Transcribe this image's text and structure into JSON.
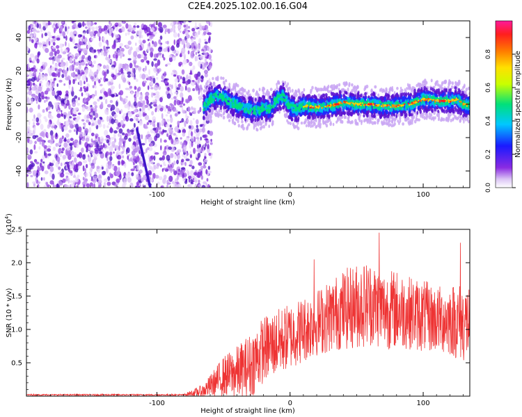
{
  "title": "C2E4.2025.102.00.16.G04",
  "colors": {
    "snr_line": "#ee3333",
    "ridge_core": "#ff2020",
    "noise_light": "#d9b8f5",
    "noise_dark": "#7a1cd8",
    "grid": "#000000"
  },
  "chart_data": [
    {
      "type": "heatmap",
      "title": "C2E4.2025.102.00.16.G04",
      "xlabel": "Height of straight line (km)",
      "ylabel": "Frequency (Hz)",
      "xlim": [
        -198,
        135
      ],
      "ylim": [
        -50,
        50
      ],
      "x_ticks": [
        -100,
        0,
        100
      ],
      "y_ticks": [
        -40,
        -20,
        0,
        20,
        40
      ],
      "colorbar": {
        "label": "Normalized spectral amplitude",
        "range": [
          0.0,
          1.0
        ],
        "ticks": [
          "0.0",
          "0.2",
          "0.4",
          "0.6",
          "0.8"
        ]
      },
      "noise_region_x": [
        -198,
        -65
      ],
      "ridge": {
        "x": [
          -65,
          -60,
          -55,
          -50,
          -45,
          -40,
          -35,
          -30,
          -25,
          -20,
          -15,
          -10,
          -5,
          0,
          5,
          10,
          20,
          30,
          40,
          50,
          60,
          70,
          80,
          90,
          100,
          110,
          115,
          120,
          125,
          130,
          135
        ],
        "y": [
          -2,
          3,
          5,
          4,
          1,
          0,
          -3,
          -3,
          -4,
          -2,
          -3,
          3,
          5,
          -2,
          -3,
          -1,
          -2,
          -1,
          1,
          0,
          0,
          -1,
          -1,
          0,
          3,
          2,
          2,
          2,
          3,
          0,
          -1
        ],
        "peak_amplitude_x": [
          35,
          60,
          115
        ]
      }
    },
    {
      "type": "line",
      "xlabel": "Height of straight line (km)",
      "ylabel": "SNR (10 * v/v)",
      "multiplier": "(x10^4)",
      "xlim": [
        -198,
        135
      ],
      "ylim": [
        0,
        2.5
      ],
      "x_ticks": [
        -100,
        0,
        100
      ],
      "y_ticks": [
        0.5,
        1.0,
        1.5,
        2.0,
        2.5
      ],
      "series": [
        {
          "envelope_x": [
            -198,
            -80,
            -65,
            -50,
            -40,
            -30,
            -20,
            -10,
            0,
            10,
            20,
            30,
            40,
            50,
            60,
            70,
            80,
            90,
            100,
            110,
            120,
            130,
            135
          ],
          "envelope_mean": [
            0.02,
            0.02,
            0.08,
            0.3,
            0.35,
            0.45,
            0.7,
            0.8,
            0.9,
            1.0,
            1.1,
            1.2,
            1.3,
            1.35,
            1.4,
            1.3,
            1.3,
            1.25,
            1.2,
            1.15,
            1.15,
            1.1,
            1.1
          ],
          "envelope_amplitude": [
            0.01,
            0.01,
            0.1,
            0.3,
            0.4,
            0.5,
            0.5,
            0.5,
            0.5,
            0.5,
            0.5,
            0.55,
            0.6,
            0.65,
            0.65,
            0.6,
            0.6,
            0.55,
            0.55,
            0.5,
            0.55,
            0.6,
            0.6
          ],
          "peaks": [
            {
              "x": 67,
              "y": 2.45
            },
            {
              "x": 128,
              "y": 2.3
            },
            {
              "x": 18,
              "y": 2.05
            }
          ]
        }
      ]
    }
  ]
}
